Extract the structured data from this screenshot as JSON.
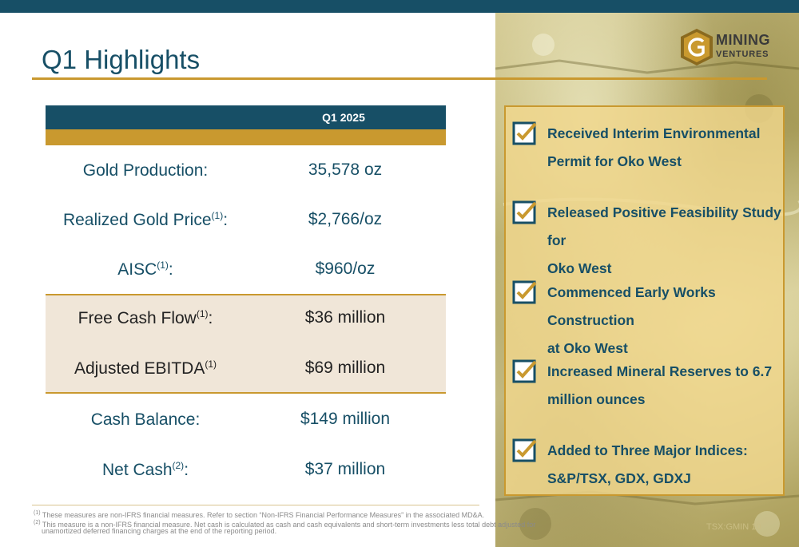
{
  "header": {
    "title": "Q1 Highlights",
    "logo_line1": "MINING",
    "logo_line2": "VENTURES"
  },
  "table": {
    "column_header": "Q1 2025",
    "rows": [
      {
        "label": "Gold Production:",
        "sup": "",
        "suffix": "",
        "value": "35,578 oz"
      },
      {
        "label": "Realized Gold Price",
        "sup": "(1)",
        "suffix": ":",
        "value": "$2,766/oz"
      },
      {
        "label": "AISC",
        "sup": "(1)",
        "suffix": ":",
        "value": "$960/oz"
      },
      {
        "label": "Free Cash Flow",
        "sup": "(1)",
        "suffix": ":",
        "value": "$36 million"
      },
      {
        "label": "Adjusted EBITDA",
        "sup": "(1)",
        "suffix": "",
        "value": "$69 million"
      },
      {
        "label": "Cash Balance:",
        "sup": "",
        "suffix": "",
        "value": "$149 million"
      },
      {
        "label": "Net Cash",
        "sup": "(2)",
        "suffix": ":",
        "value": "$37 million"
      }
    ]
  },
  "highlights": [
    {
      "line1": "Received Interim Environmental",
      "line2": "Permit for Oko West"
    },
    {
      "line1": "Released Positive Feasibility Study for",
      "line2": "Oko West"
    },
    {
      "line1": "Commenced Early Works Construction",
      "line2": "at Oko West"
    },
    {
      "line1": "Increased Mineral Reserves to 6.7",
      "line2": "million ounces"
    },
    {
      "line1": "Added to Three Major Indices:",
      "line2": "S&P/TSX, GDX, GDXJ"
    }
  ],
  "footnotes": [
    {
      "mark": "(1)",
      "text": "These measures are non-IFRS financial measures. Refer to section “Non-IFRS Financial Performance Measures” in the associated MD&A."
    },
    {
      "mark": "(2)",
      "text": "This measure is a non-IFRS financial measure. Net cash is calculated as cash and cash equivalents and short-term investments less total debt adjusted for"
    },
    {
      "mark": "",
      "text": "unamortized deferred financing charges at the end of the reporting period."
    }
  ],
  "footer": {
    "ticker_page": "TSX:GMIN 10"
  },
  "colors": {
    "teal": "#174f66",
    "gold": "#c9992f",
    "shade": "#f0e6d8"
  },
  "icons": [
    "checkbox-checked-icon",
    "gmin-logo-icon"
  ]
}
